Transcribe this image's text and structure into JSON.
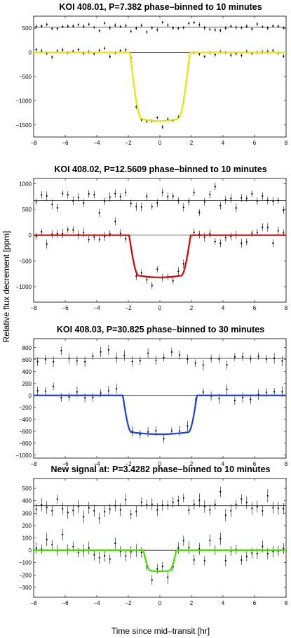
{
  "figure": {
    "ylabel": "Relative flux decrement [ppm]",
    "xlabel": "Time since mid–transit [hr]"
  },
  "chart_data": [
    {
      "type": "scatter",
      "title": "KOI 408.01, P=7.382 phase–binned to 10 minutes",
      "xlim": [
        -8,
        8
      ],
      "ylim": [
        -1750,
        750
      ],
      "xticks": [
        -8,
        -6,
        -4,
        -2,
        0,
        2,
        4,
        6,
        8
      ],
      "yticks": [
        -1500,
        -1000,
        -500,
        0,
        500
      ],
      "model_color": "#e6e600",
      "model": {
        "depth": 1420,
        "t_ingress": 1.9,
        "t_egress": 1.9,
        "ingress_width": 0.75
      },
      "secondary_offset": 520,
      "bin_hr": 0.1667,
      "point_stride": 2,
      "noise": 50,
      "err": 40
    },
    {
      "type": "scatter",
      "title": "KOI 408.02, P=12.5609 phase–binned to 10 minutes",
      "xlim": [
        -8,
        8
      ],
      "ylim": [
        -1300,
        1100
      ],
      "xticks": [
        -8,
        -6,
        -4,
        -2,
        0,
        2,
        4,
        6,
        8
      ],
      "yticks": [
        -1000,
        -500,
        0,
        500,
        1000
      ],
      "model_color": "#dd0000",
      "model": {
        "depth": 820,
        "t_ingress": 1.95,
        "t_egress": 1.95,
        "ingress_width": 0.6
      },
      "secondary_offset": 670,
      "bin_hr": 0.1667,
      "point_stride": 2,
      "noise": 95,
      "err": 75
    },
    {
      "type": "scatter",
      "title": "KOI 408.03, P=30.825 phase–binned to 30 minutes",
      "xlim": [
        -8,
        8
      ],
      "ylim": [
        -1050,
        950
      ],
      "xticks": [
        -8,
        -6,
        -4,
        -2,
        0,
        2,
        4,
        6,
        8
      ],
      "yticks": [
        -1000,
        -800,
        -600,
        -400,
        -200,
        0,
        200,
        400,
        600,
        800
      ],
      "model_color": "#1f3fdd",
      "model": {
        "depth": 650,
        "t_ingress": 2.35,
        "t_egress": 2.35,
        "ingress_width": 0.55
      },
      "secondary_offset": 620,
      "bin_hr": 0.5,
      "point_stride": 1,
      "noise": 80,
      "err": 75
    },
    {
      "type": "scatter",
      "title": "New signal at: P=3.4282 phase–binned to 10 minutes",
      "xlim": [
        -8,
        8
      ],
      "ylim": [
        -380,
        580
      ],
      "xticks": [
        -8,
        -6,
        -4,
        -2,
        0,
        2,
        4,
        6,
        8
      ],
      "yticks": [
        -300,
        -200,
        -100,
        0,
        100,
        200,
        300,
        400,
        500
      ],
      "model_color": "#44dd00",
      "model": {
        "depth": 170,
        "t_ingress": 1.05,
        "t_egress": 1.05,
        "ingress_width": 0.45
      },
      "secondary_offset": 360,
      "bin_hr": 0.1667,
      "point_stride": 2,
      "noise": 50,
      "err": 45
    }
  ]
}
